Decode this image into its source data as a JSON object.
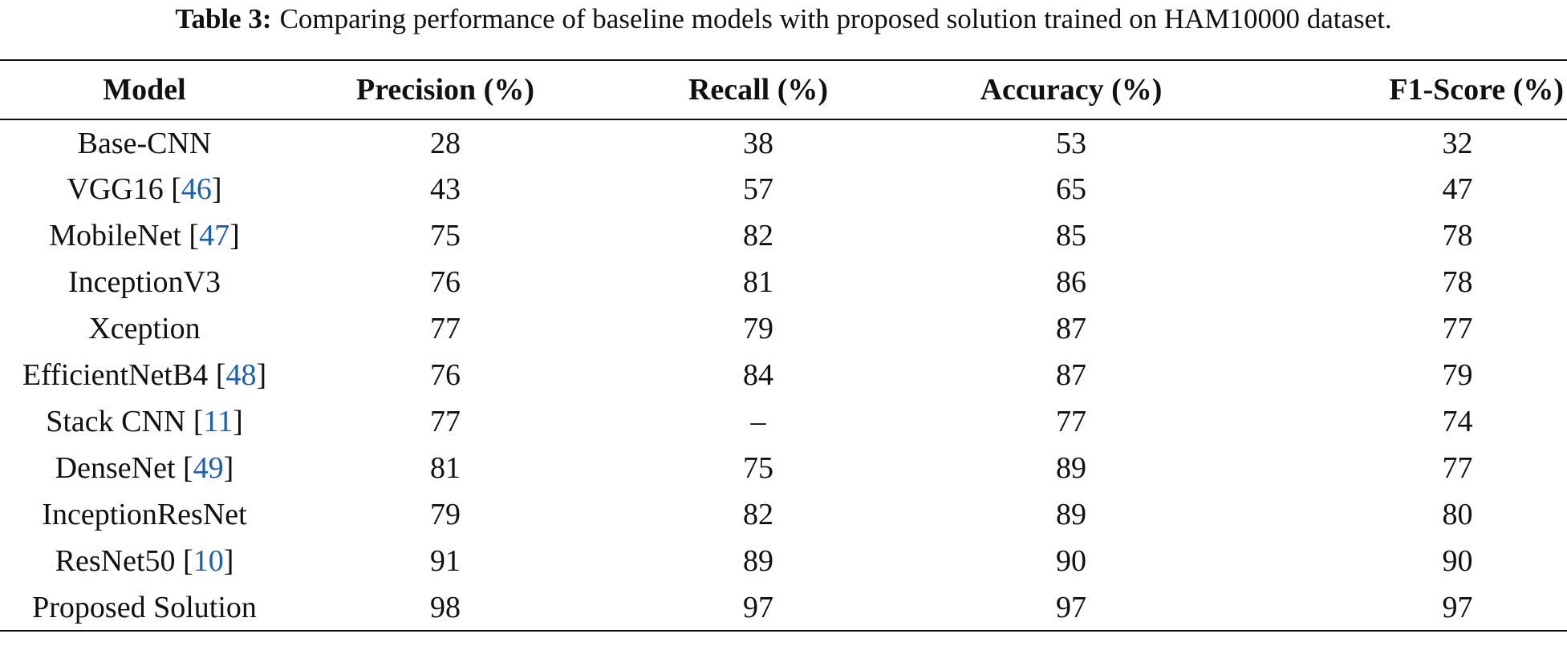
{
  "caption": {
    "label": "Table 3:",
    "text": "Comparing performance of baseline models with proposed solution trained on HAM10000 dataset."
  },
  "table": {
    "headers": [
      "Model",
      "Precision (%)",
      "Recall (%)",
      "Accuracy (%)",
      "F1-Score (%)"
    ],
    "rows": [
      {
        "model": "Base-CNN",
        "ref": "",
        "precision": "28",
        "recall": "38",
        "accuracy": "53",
        "f1": "32"
      },
      {
        "model": "VGG16 ",
        "ref": "46",
        "precision": "43",
        "recall": "57",
        "accuracy": "65",
        "f1": "47"
      },
      {
        "model": "MobileNet ",
        "ref": "47",
        "precision": "75",
        "recall": "82",
        "accuracy": "85",
        "f1": "78"
      },
      {
        "model": "InceptionV3",
        "ref": "",
        "precision": "76",
        "recall": "81",
        "accuracy": "86",
        "f1": "78"
      },
      {
        "model": "Xception",
        "ref": "",
        "precision": "77",
        "recall": "79",
        "accuracy": "87",
        "f1": "77"
      },
      {
        "model": "EfficientNetB4 ",
        "ref": "48",
        "precision": "76",
        "recall": "84",
        "accuracy": "87",
        "f1": "79"
      },
      {
        "model": "Stack CNN ",
        "ref": "11",
        "precision": "77",
        "recall": "–",
        "accuracy": "77",
        "f1": "74"
      },
      {
        "model": "DenseNet ",
        "ref": "49",
        "precision": "81",
        "recall": "75",
        "accuracy": "89",
        "f1": "77"
      },
      {
        "model": "InceptionResNet",
        "ref": "",
        "precision": "79",
        "recall": "82",
        "accuracy": "89",
        "f1": "80"
      },
      {
        "model": "ResNet50 ",
        "ref": "10",
        "precision": "91",
        "recall": "89",
        "accuracy": "90",
        "f1": "90"
      },
      {
        "model": "Proposed Solution",
        "ref": "",
        "precision": "98",
        "recall": "97",
        "accuracy": "97",
        "f1": "97"
      }
    ]
  },
  "colors": {
    "citation_link": "#1a5fb4",
    "text": "#111111"
  }
}
